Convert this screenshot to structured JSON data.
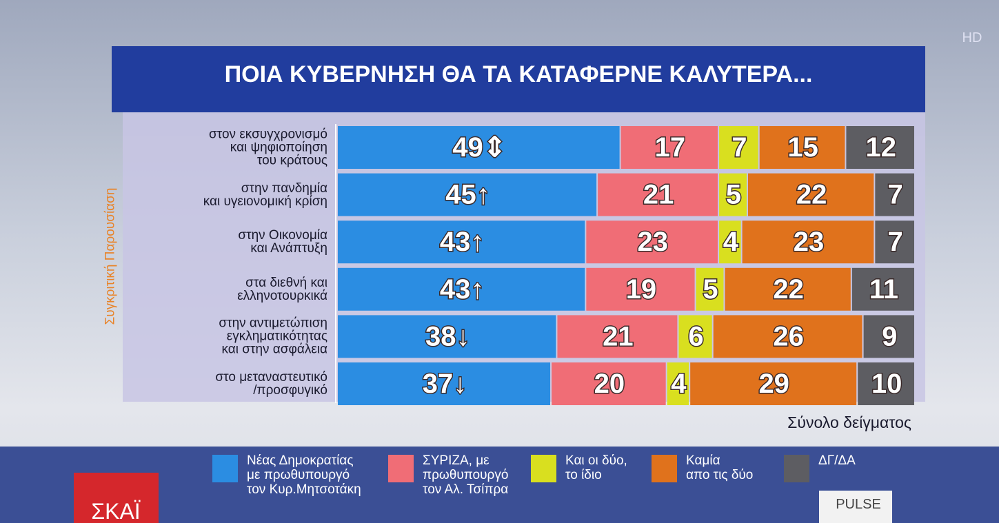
{
  "chart_data": {
    "type": "stacked_barh",
    "title": "ΠΟΙΑ ΚΥΒΕΡΝΗΣΗ ΘΑ ΤΑ ΚΑΤΑΦΕΡΝΕ ΚΑΛΥΤΕΡΑ...",
    "side_label": "Συγκριτική Παρουσίαση",
    "note": "Σύνολο δείγματος",
    "categories": [
      "στον εκσυγχρονισμό\nκαι ψηφιοποίηση\nτου κράτους",
      "στην πανδημία\nκαι υγειονομική κρίση",
      "στην Οικονομία\nκαι Ανάπτυξη",
      "στα διεθνή και\nελληνοτουρκικά",
      "στην αντιμετώπιση\nεγκληματικότητας\nκαι στην ασφάλεια",
      "στο μεταναστευτικό\n/προσφυγικό"
    ],
    "series": [
      {
        "name": "Νέας Δημοκρατίας\nμε πρωθυπουργό\nτον Κυρ.Μητσοτάκη",
        "color": "#2b8de2",
        "values": [
          49,
          45,
          43,
          43,
          38,
          37
        ],
        "value_labels": [
          "49⇕",
          "45↑",
          "43↑",
          "43↑",
          "38↓",
          "37↓"
        ]
      },
      {
        "name": "ΣΥΡΙΖΑ, με\nπρωθυπουργό\nτον Αλ. Τσίπρα",
        "color": "#f06d76",
        "values": [
          17,
          21,
          23,
          19,
          21,
          20
        ]
      },
      {
        "name": "Και οι δύο,\nτο ίδιο",
        "color": "#d9df1f",
        "values": [
          7,
          5,
          4,
          5,
          6,
          4
        ]
      },
      {
        "name": "Καμία\nαπο τις δύο",
        "color": "#e0721c",
        "values": [
          15,
          22,
          23,
          22,
          26,
          29
        ]
      },
      {
        "name": "ΔΓ/ΔΑ",
        "color": "#5d5d62",
        "values": [
          12,
          7,
          7,
          11,
          9,
          10
        ]
      }
    ]
  },
  "screen": {
    "channel": "ΣΚΑΪ",
    "pollster": "PULSE",
    "badge": "HD"
  }
}
